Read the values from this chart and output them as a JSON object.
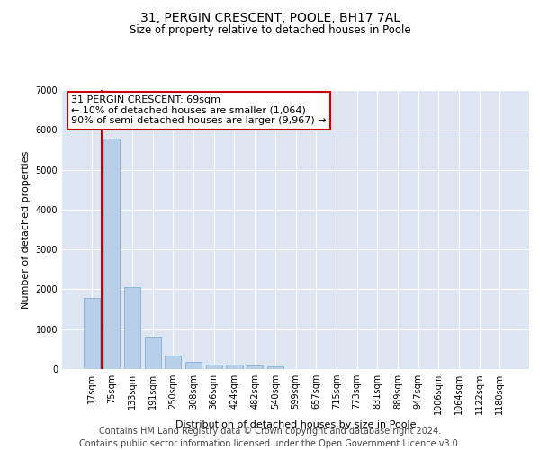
{
  "title": "31, PERGIN CRESCENT, POOLE, BH17 7AL",
  "subtitle": "Size of property relative to detached houses in Poole",
  "xlabel": "Distribution of detached houses by size in Poole",
  "ylabel": "Number of detached properties",
  "categories": [
    "17sqm",
    "75sqm",
    "133sqm",
    "191sqm",
    "250sqm",
    "308sqm",
    "366sqm",
    "424sqm",
    "482sqm",
    "540sqm",
    "599sqm",
    "657sqm",
    "715sqm",
    "773sqm",
    "831sqm",
    "889sqm",
    "947sqm",
    "1006sqm",
    "1064sqm",
    "1122sqm",
    "1180sqm"
  ],
  "values": [
    1780,
    5780,
    2060,
    820,
    340,
    185,
    120,
    105,
    95,
    70,
    0,
    0,
    0,
    0,
    0,
    0,
    0,
    0,
    0,
    0,
    0
  ],
  "bar_color": "#b8cfe8",
  "bar_edge_color": "#7aaad0",
  "vline_color": "#cc0000",
  "vline_x": 0.5,
  "annotation_text": "31 PERGIN CRESCENT: 69sqm\n← 10% of detached houses are smaller (1,064)\n90% of semi-detached houses are larger (9,967) →",
  "annotation_box_facecolor": "white",
  "annotation_box_edgecolor": "#cc0000",
  "ylim": [
    0,
    7000
  ],
  "yticks": [
    0,
    1000,
    2000,
    3000,
    4000,
    5000,
    6000,
    7000
  ],
  "background_color": "#dde5f3",
  "grid_color": "#ffffff",
  "title_fontsize": 10,
  "subtitle_fontsize": 8.5,
  "axis_label_fontsize": 8,
  "tick_fontsize": 7,
  "annot_fontsize": 8,
  "footer_fontsize": 7,
  "footer": "Contains HM Land Registry data © Crown copyright and database right 2024.\nContains public sector information licensed under the Open Government Licence v3.0."
}
